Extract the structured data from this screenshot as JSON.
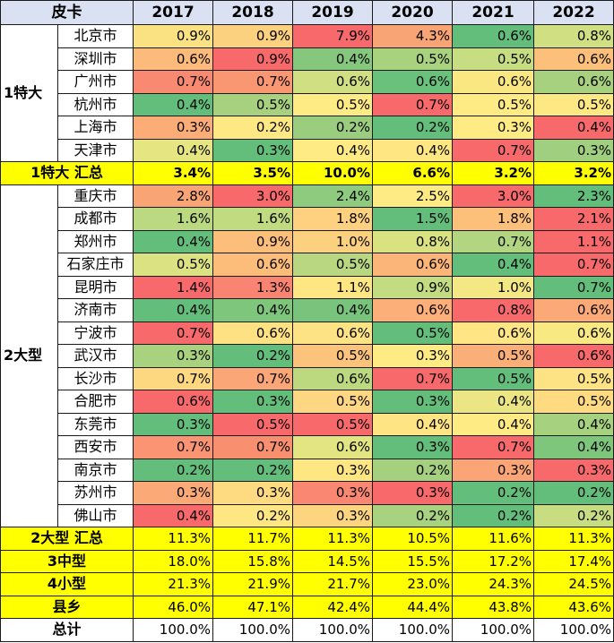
{
  "header": {
    "label": "皮卡",
    "years": [
      "2017",
      "2018",
      "2019",
      "2020",
      "2021",
      "2022"
    ]
  },
  "groups": [
    {
      "name": "1特大",
      "rows": [
        {
          "city": "北京市",
          "values": [
            "0.9%",
            "0.9%",
            "7.9%",
            "4.3%",
            "0.6%",
            "0.8%"
          ],
          "colors": [
            "#fae282",
            "#fbd07f",
            "#f8696b",
            "#f9a474",
            "#63be7b",
            "#cfdf81"
          ]
        },
        {
          "city": "深圳市",
          "values": [
            "0.6%",
            "0.9%",
            "0.4%",
            "0.5%",
            "0.5%",
            "0.6%"
          ],
          "colors": [
            "#fcbb7a",
            "#f8696b",
            "#85c87d",
            "#a9d27f",
            "#c7dd81",
            "#fcc07b"
          ]
        },
        {
          "city": "广州市",
          "values": [
            "0.7%",
            "0.7%",
            "0.6%",
            "0.6%",
            "0.6%",
            "0.6%"
          ],
          "colors": [
            "#f98a71",
            "#f99772",
            "#cfdf81",
            "#6ac17c",
            "#fae782",
            "#a7d17f"
          ]
        },
        {
          "city": "杭州市",
          "values": [
            "0.4%",
            "0.5%",
            "0.5%",
            "0.7%",
            "0.5%",
            "0.5%"
          ],
          "colors": [
            "#63be7b",
            "#a8d17f",
            "#ffeb84",
            "#f8696b",
            "#ffeb84",
            "#fee883"
          ]
        },
        {
          "city": "上海市",
          "values": [
            "0.3%",
            "0.2%",
            "0.2%",
            "0.2%",
            "0.3%",
            "0.4%"
          ],
          "colors": [
            "#fbac77",
            "#fee883",
            "#9bcd7e",
            "#63be7b",
            "#ffeb84",
            "#f8696b"
          ]
        },
        {
          "city": "天津市",
          "values": [
            "0.4%",
            "0.3%",
            "0.4%",
            "0.4%",
            "0.7%",
            "0.3%"
          ],
          "colors": [
            "#e5e582",
            "#63be7b",
            "#ffeb84",
            "#fee683",
            "#f8696b",
            "#9fcf7f"
          ]
        }
      ],
      "summary": {
        "label": "1特大 汇总",
        "values": [
          "3.4%",
          "3.5%",
          "10.0%",
          "6.6%",
          "3.2%",
          "3.2%"
        ],
        "bold": true
      }
    },
    {
      "name": "2大型",
      "rows": [
        {
          "city": "重庆市",
          "values": [
            "2.8%",
            "3.0%",
            "2.4%",
            "2.5%",
            "3.0%",
            "2.3%"
          ],
          "colors": [
            "#f9a474",
            "#f8696b",
            "#8fcb7e",
            "#ffeb84",
            "#f8696b",
            "#63be7b"
          ]
        },
        {
          "city": "成都市",
          "values": [
            "1.6%",
            "1.6%",
            "1.8%",
            "1.5%",
            "1.8%",
            "2.1%"
          ],
          "colors": [
            "#bad980",
            "#c0db80",
            "#fdd17f",
            "#63be7b",
            "#fcc07b",
            "#f8696b"
          ]
        },
        {
          "city": "郑州市",
          "values": [
            "0.4%",
            "0.9%",
            "1.0%",
            "0.8%",
            "0.7%",
            "1.1%"
          ],
          "colors": [
            "#63be7b",
            "#fcbf7b",
            "#fbd07f",
            "#d9e281",
            "#b1d580",
            "#f8696b"
          ]
        },
        {
          "city": "石家庄市",
          "values": [
            "0.5%",
            "0.6%",
            "0.5%",
            "0.6%",
            "0.4%",
            "0.7%"
          ],
          "colors": [
            "#dbe281",
            "#fcbd7b",
            "#b8d780",
            "#fbb579",
            "#63be7b",
            "#f8696b"
          ]
        },
        {
          "city": "昆明市",
          "values": [
            "1.4%",
            "1.3%",
            "1.1%",
            "0.9%",
            "1.0%",
            "0.7%"
          ],
          "colors": [
            "#f8696b",
            "#f98471",
            "#fee683",
            "#c3dc81",
            "#f4e884",
            "#63be7b"
          ]
        },
        {
          "city": "济南市",
          "values": [
            "0.4%",
            "0.4%",
            "0.4%",
            "0.6%",
            "0.8%",
            "0.6%"
          ],
          "colors": [
            "#63be7b",
            "#7fc67d",
            "#78c47c",
            "#fcaf78",
            "#f8696b",
            "#fbaa77"
          ]
        },
        {
          "city": "宁波市",
          "values": [
            "0.7%",
            "0.6%",
            "0.6%",
            "0.5%",
            "0.6%",
            "0.6%"
          ],
          "colors": [
            "#f8696b",
            "#fee182",
            "#fde383",
            "#63be7b",
            "#ffe583",
            "#f9e983"
          ]
        },
        {
          "city": "武汉市",
          "values": [
            "0.3%",
            "0.2%",
            "0.5%",
            "0.3%",
            "0.5%",
            "0.6%"
          ],
          "colors": [
            "#a9d27f",
            "#63be7b",
            "#fcc37c",
            "#ffeb84",
            "#fbaf78",
            "#f8696b"
          ]
        },
        {
          "city": "长沙市",
          "values": [
            "0.7%",
            "0.7%",
            "0.6%",
            "0.7%",
            "0.5%",
            "0.5%"
          ],
          "colors": [
            "#fed881",
            "#fba676",
            "#bdd980",
            "#f8696b",
            "#63be7b",
            "#fde383"
          ]
        },
        {
          "city": "合肥市",
          "values": [
            "0.6%",
            "0.3%",
            "0.5%",
            "0.3%",
            "0.4%",
            "0.5%"
          ],
          "colors": [
            "#f8696b",
            "#63be7b",
            "#ffd681",
            "#63be7b",
            "#ebe683",
            "#fedb81"
          ]
        },
        {
          "city": "东莞市",
          "values": [
            "0.3%",
            "0.5%",
            "0.5%",
            "0.4%",
            "0.4%",
            "0.4%"
          ],
          "colors": [
            "#63be7b",
            "#f8696b",
            "#f8696b",
            "#fee483",
            "#ffeb84",
            "#a6d17f"
          ]
        },
        {
          "city": "西安市",
          "values": [
            "0.7%",
            "0.7%",
            "0.6%",
            "0.3%",
            "0.7%",
            "0.4%"
          ],
          "colors": [
            "#fa9472",
            "#f8906f",
            "#e3e583",
            "#63be7b",
            "#f8696b",
            "#7fc67d"
          ]
        },
        {
          "city": "南京市",
          "values": [
            "0.2%",
            "0.2%",
            "0.3%",
            "0.2%",
            "0.3%",
            "0.3%"
          ],
          "colors": [
            "#63be7b",
            "#63be7b",
            "#fee683",
            "#a4d07f",
            "#fba476",
            "#f8696b"
          ]
        },
        {
          "city": "苏州市",
          "values": [
            "0.3%",
            "0.3%",
            "0.3%",
            "0.3%",
            "0.2%",
            "0.2%"
          ],
          "colors": [
            "#fbaa77",
            "#fedb81",
            "#f98771",
            "#f8696b",
            "#63be7b",
            "#63be7b"
          ]
        },
        {
          "city": "佛山市",
          "values": [
            "0.4%",
            "0.2%",
            "0.3%",
            "0.2%",
            "0.2%",
            "0.2%"
          ],
          "colors": [
            "#f8696b",
            "#fee683",
            "#fdd57f",
            "#a8d27f",
            "#63be7b",
            "#c8dd81"
          ]
        }
      ],
      "summary": {
        "label": "2大型 汇总",
        "values": [
          "11.3%",
          "11.7%",
          "11.3%",
          "10.5%",
          "11.6%",
          "11.3%"
        ],
        "bold": false
      }
    }
  ],
  "extras": [
    {
      "label": "3中型",
      "values": [
        "18.0%",
        "15.8%",
        "14.5%",
        "15.5%",
        "17.2%",
        "17.4%"
      ],
      "kind": "summary"
    },
    {
      "label": "4小型",
      "values": [
        "21.3%",
        "21.9%",
        "21.7%",
        "23.0%",
        "24.3%",
        "24.5%"
      ],
      "kind": "summary"
    },
    {
      "label": "县乡",
      "values": [
        "46.0%",
        "47.1%",
        "42.4%",
        "44.4%",
        "43.8%",
        "43.6%"
      ],
      "kind": "summary"
    },
    {
      "label": "总计",
      "values": [
        "100.0%",
        "100.0%",
        "100.0%",
        "100.0%",
        "100.0%",
        "100.0%"
      ],
      "kind": "total"
    }
  ]
}
